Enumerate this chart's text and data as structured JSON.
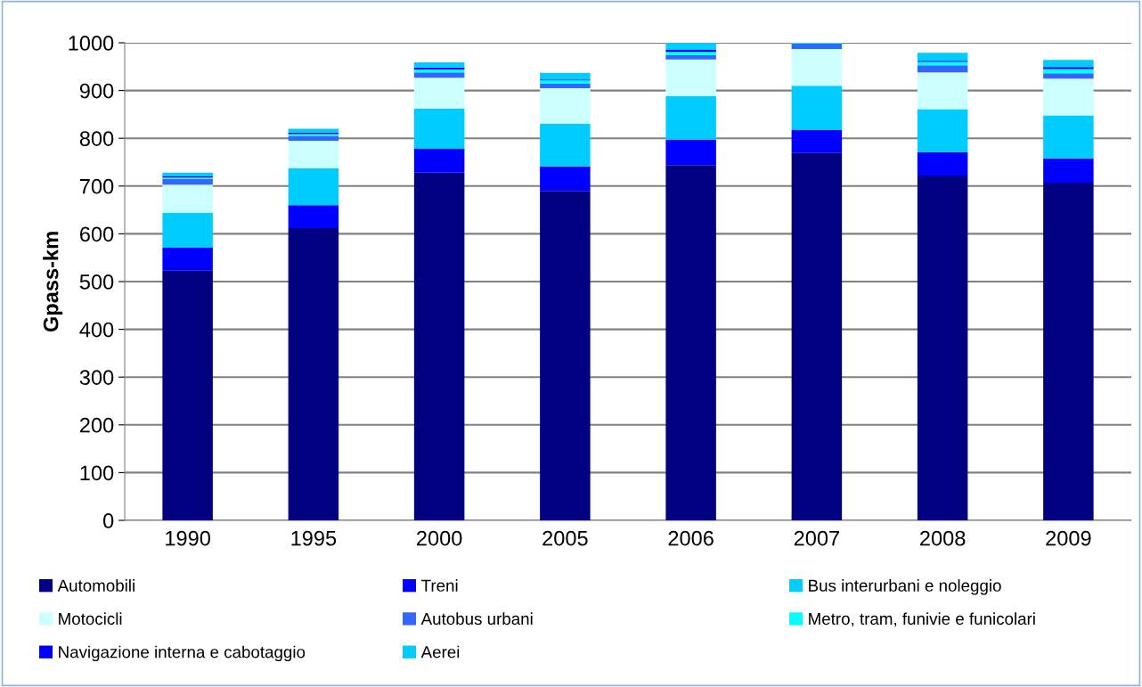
{
  "chart_data": {
    "type": "bar",
    "stacked": true,
    "ylabel": "Gpass-km",
    "categories": [
      "1990",
      "1995",
      "2000",
      "2005",
      "2006",
      "2007",
      "2008",
      "2009"
    ],
    "series": [
      {
        "name": "Automobili",
        "color": "#000080",
        "values": [
          524,
          612,
          728,
          690,
          744,
          770,
          722,
          707
        ]
      },
      {
        "name": "Treni",
        "color": "#0000ff",
        "values": [
          47,
          48,
          50,
          51,
          53,
          47,
          49,
          51
        ]
      },
      {
        "name": "Bus interurbani e noleggio",
        "color": "#00ccff",
        "values": [
          73,
          77,
          84,
          89,
          91,
          93,
          90,
          90
        ]
      },
      {
        "name": "Motocicli",
        "color": "#ccffff",
        "values": [
          59,
          58,
          65,
          75,
          77,
          77,
          77,
          77
        ]
      },
      {
        "name": "Autobus urbani",
        "color": "#3366ff",
        "values": [
          12,
          10,
          11,
          9,
          9,
          11,
          15,
          11
        ]
      },
      {
        "name": "Metro, tram, funivie e funicolari",
        "color": "#00ffff",
        "values": [
          3,
          4,
          6,
          7,
          7,
          2,
          7,
          9
        ]
      },
      {
        "name": "Navigazione interna e cabotaggio",
        "color": "#0000ff",
        "values": [
          3,
          3,
          4,
          2,
          4,
          null,
          2,
          4
        ]
      },
      {
        "name": "Aerei",
        "color": "#00ccff",
        "values": [
          7,
          8,
          11,
          14,
          15,
          null,
          17,
          15
        ]
      }
    ],
    "ylim": [
      0,
      1000
    ],
    "yticks": [
      0,
      100,
      200,
      300,
      400,
      500,
      600,
      700,
      800,
      900,
      1000
    ],
    "grid": "y",
    "legend": "bottom"
  }
}
